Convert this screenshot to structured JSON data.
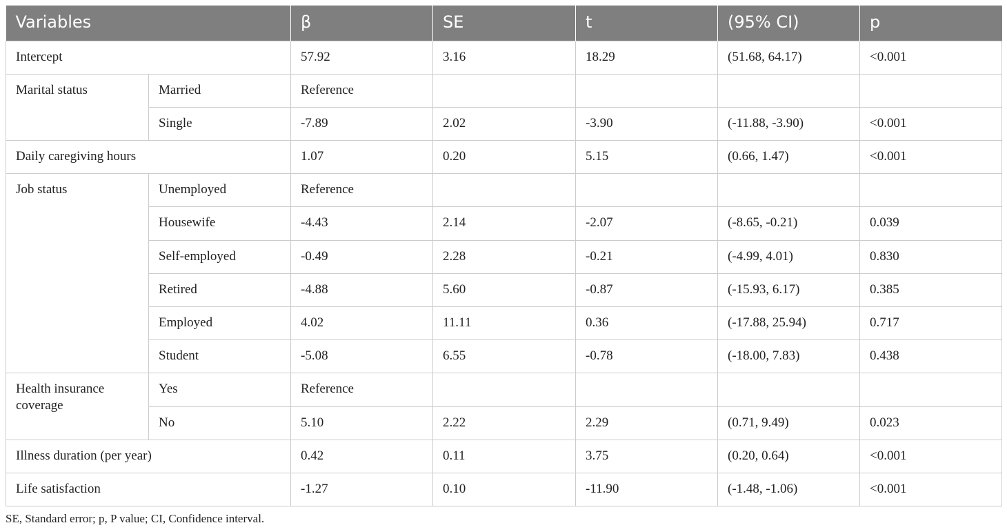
{
  "headers": [
    "Variables",
    "β",
    "SE",
    "t",
    "(95% CI)",
    "p"
  ],
  "rows": [
    {
      "variable": "Intercept",
      "beta": "57.92",
      "se": "3.16",
      "t": "18.29",
      "ci": "(51.68, 64.17)",
      "p": "<0.001"
    },
    {
      "variable": "Marital status",
      "sub": "Married",
      "beta": "Reference",
      "se": "",
      "t": "",
      "ci": "",
      "p": ""
    },
    {
      "sub": "Single",
      "beta": "-7.89",
      "se": "2.02",
      "t": "-3.90",
      "ci": "(-11.88, -3.90)",
      "p": "<0.001"
    },
    {
      "variable": "Daily caregiving hours",
      "beta": "1.07",
      "se": "0.20",
      "t": "5.15",
      "ci": "(0.66, 1.47)",
      "p": "<0.001"
    },
    {
      "variable": "Job status",
      "sub": "Unemployed",
      "beta": "Reference",
      "se": "",
      "t": "",
      "ci": "",
      "p": ""
    },
    {
      "sub": "Housewife",
      "beta": "-4.43",
      "se": "2.14",
      "t": "-2.07",
      "ci": "(-8.65, -0.21)",
      "p": "0.039"
    },
    {
      "sub": "Self-employed",
      "beta": "-0.49",
      "se": "2.28",
      "t": "-0.21",
      "ci": "(-4.99, 4.01)",
      "p": "0.830"
    },
    {
      "sub": "Retired",
      "beta": "-4.88",
      "se": "5.60",
      "t": "-0.87",
      "ci": "(-15.93, 6.17)",
      "p": "0.385"
    },
    {
      "sub": "Employed",
      "beta": "4.02",
      "se": "11.11",
      "t": "0.36",
      "ci": "(-17.88, 25.94)",
      "p": "0.717"
    },
    {
      "sub": "Student",
      "beta": "-5.08",
      "se": "6.55",
      "t": "-0.78",
      "ci": "(-18.00, 7.83)",
      "p": "0.438"
    },
    {
      "variable": "Health insurance coverage",
      "sub": "Yes",
      "beta": "Reference",
      "se": "",
      "t": "",
      "ci": "",
      "p": ""
    },
    {
      "sub": "No",
      "beta": "5.10",
      "se": "2.22",
      "t": "2.29",
      "ci": "(0.71, 9.49)",
      "p": "0.023"
    },
    {
      "variable": "Illness duration (per year)",
      "beta": "0.42",
      "se": "0.11",
      "t": "3.75",
      "ci": "(0.20, 0.64)",
      "p": "<0.001"
    },
    {
      "variable": "Life satisfaction",
      "beta": "-1.27",
      "se": "0.10",
      "t": "-11.90",
      "ci": "(-1.48, -1.06)",
      "p": "<0.001"
    }
  ],
  "footnote": "SE, Standard error; p, P value; CI, Confidence interval."
}
